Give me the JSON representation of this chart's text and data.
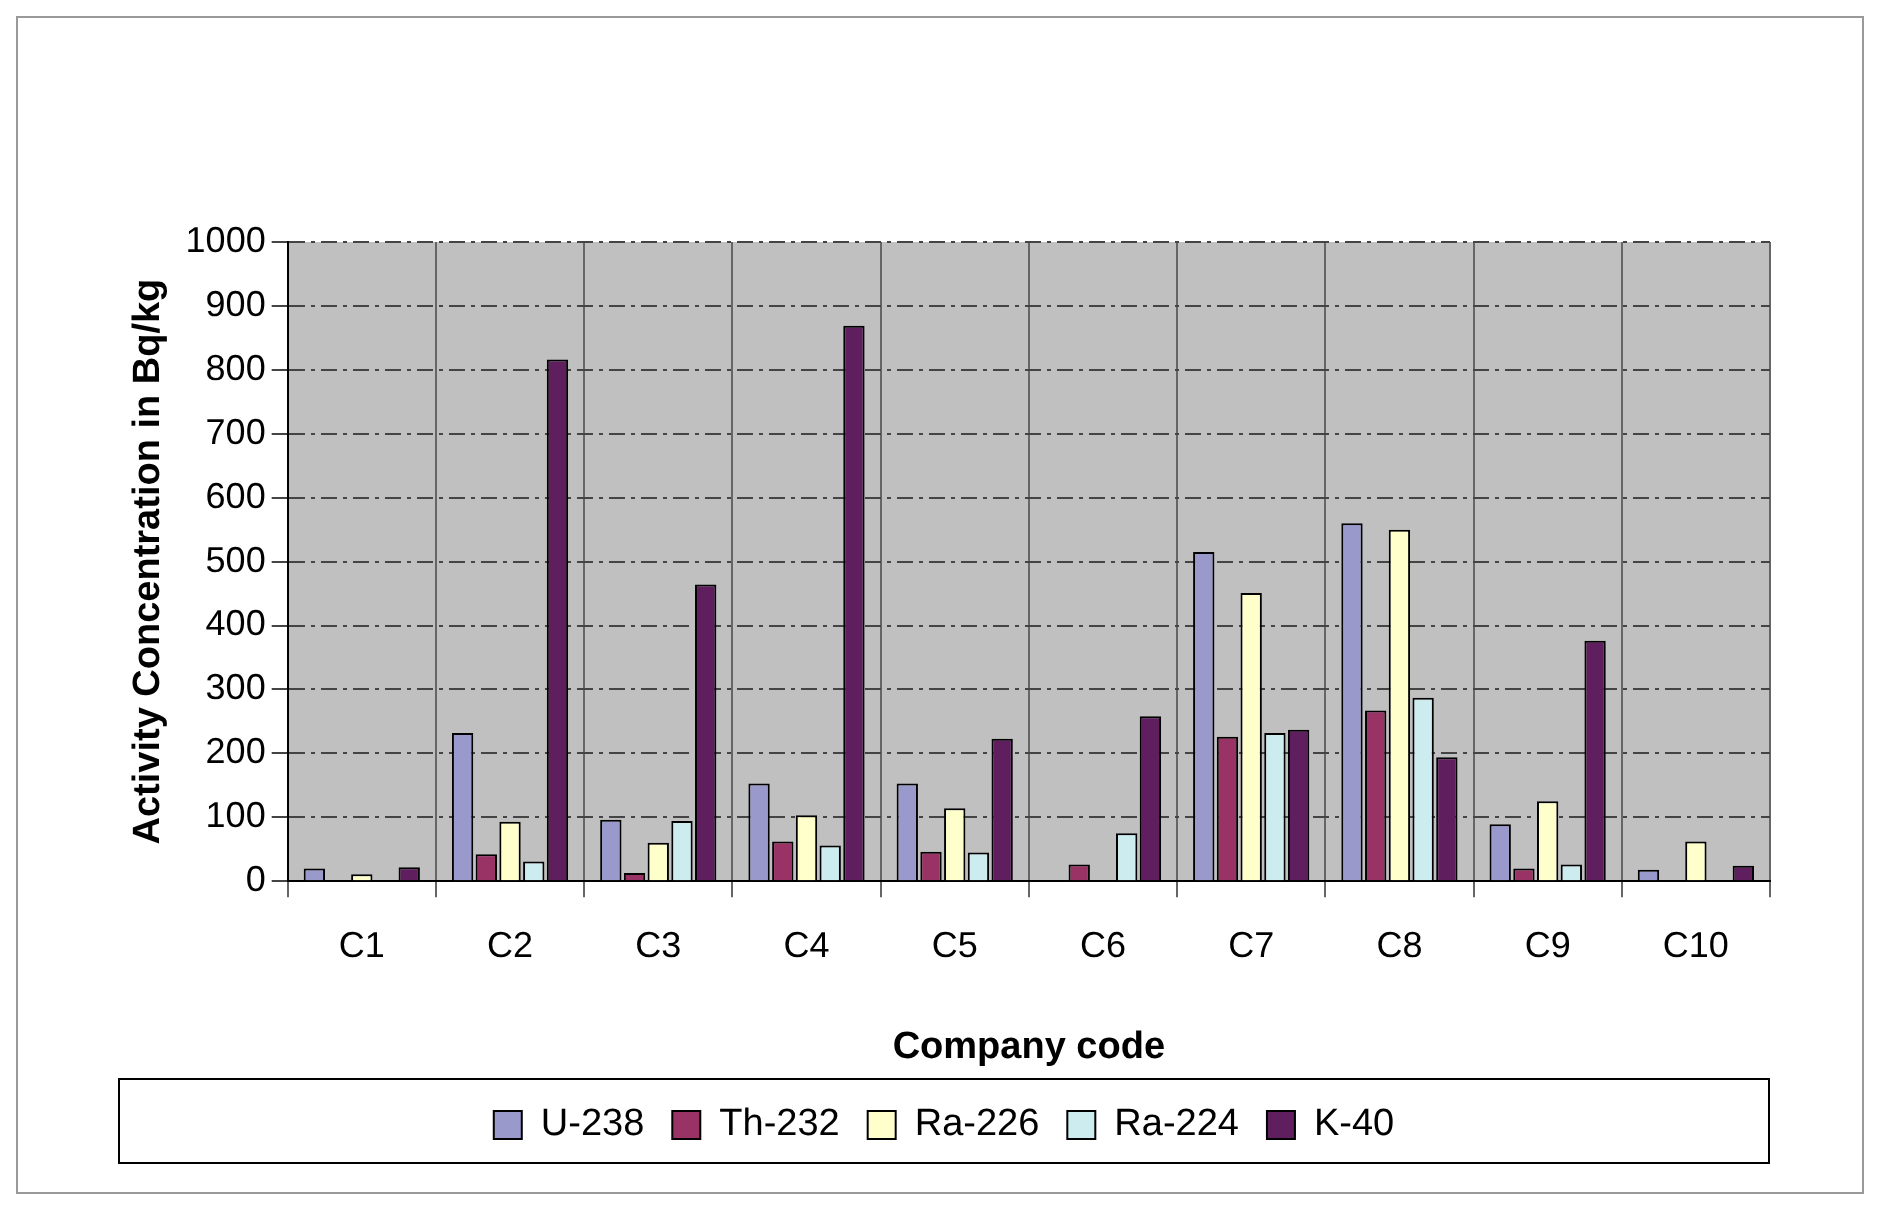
{
  "chart_data": {
    "type": "bar",
    "xlabel": "Company code",
    "ylabel": "Activity Concentration in Bq/kg",
    "categories": [
      "C1",
      "C2",
      "C3",
      "C4",
      "C5",
      "C6",
      "C7",
      "C8",
      "C9",
      "C10"
    ],
    "series": [
      {
        "name": "U-238",
        "color": "#9999cc",
        "values": [
          20,
          232,
          96,
          153,
          153,
          0,
          515,
          560,
          89,
          18
        ]
      },
      {
        "name": "Th-232",
        "color": "#993366",
        "values": [
          null,
          42,
          13,
          62,
          46,
          26,
          226,
          267,
          20,
          0
        ]
      },
      {
        "name": "Ra-226",
        "color": "#ffffcc",
        "values": [
          11,
          93,
          60,
          103,
          114,
          0,
          451,
          550,
          125,
          62
        ]
      },
      {
        "name": "Ra-224",
        "color": "#ccecf0",
        "values": [
          null,
          31,
          94,
          56,
          45,
          75,
          232,
          287,
          26,
          0
        ]
      },
      {
        "name": "K-40",
        "color": "#5f1f5f",
        "values": [
          22,
          816,
          464,
          869,
          223,
          258,
          237,
          194,
          376,
          24
        ]
      }
    ],
    "ylim": [
      0,
      1000
    ],
    "yticks": [
      0,
      100,
      200,
      300,
      400,
      500,
      600,
      700,
      800,
      900,
      1000
    ],
    "grid": true,
    "legend": "bottom"
  }
}
